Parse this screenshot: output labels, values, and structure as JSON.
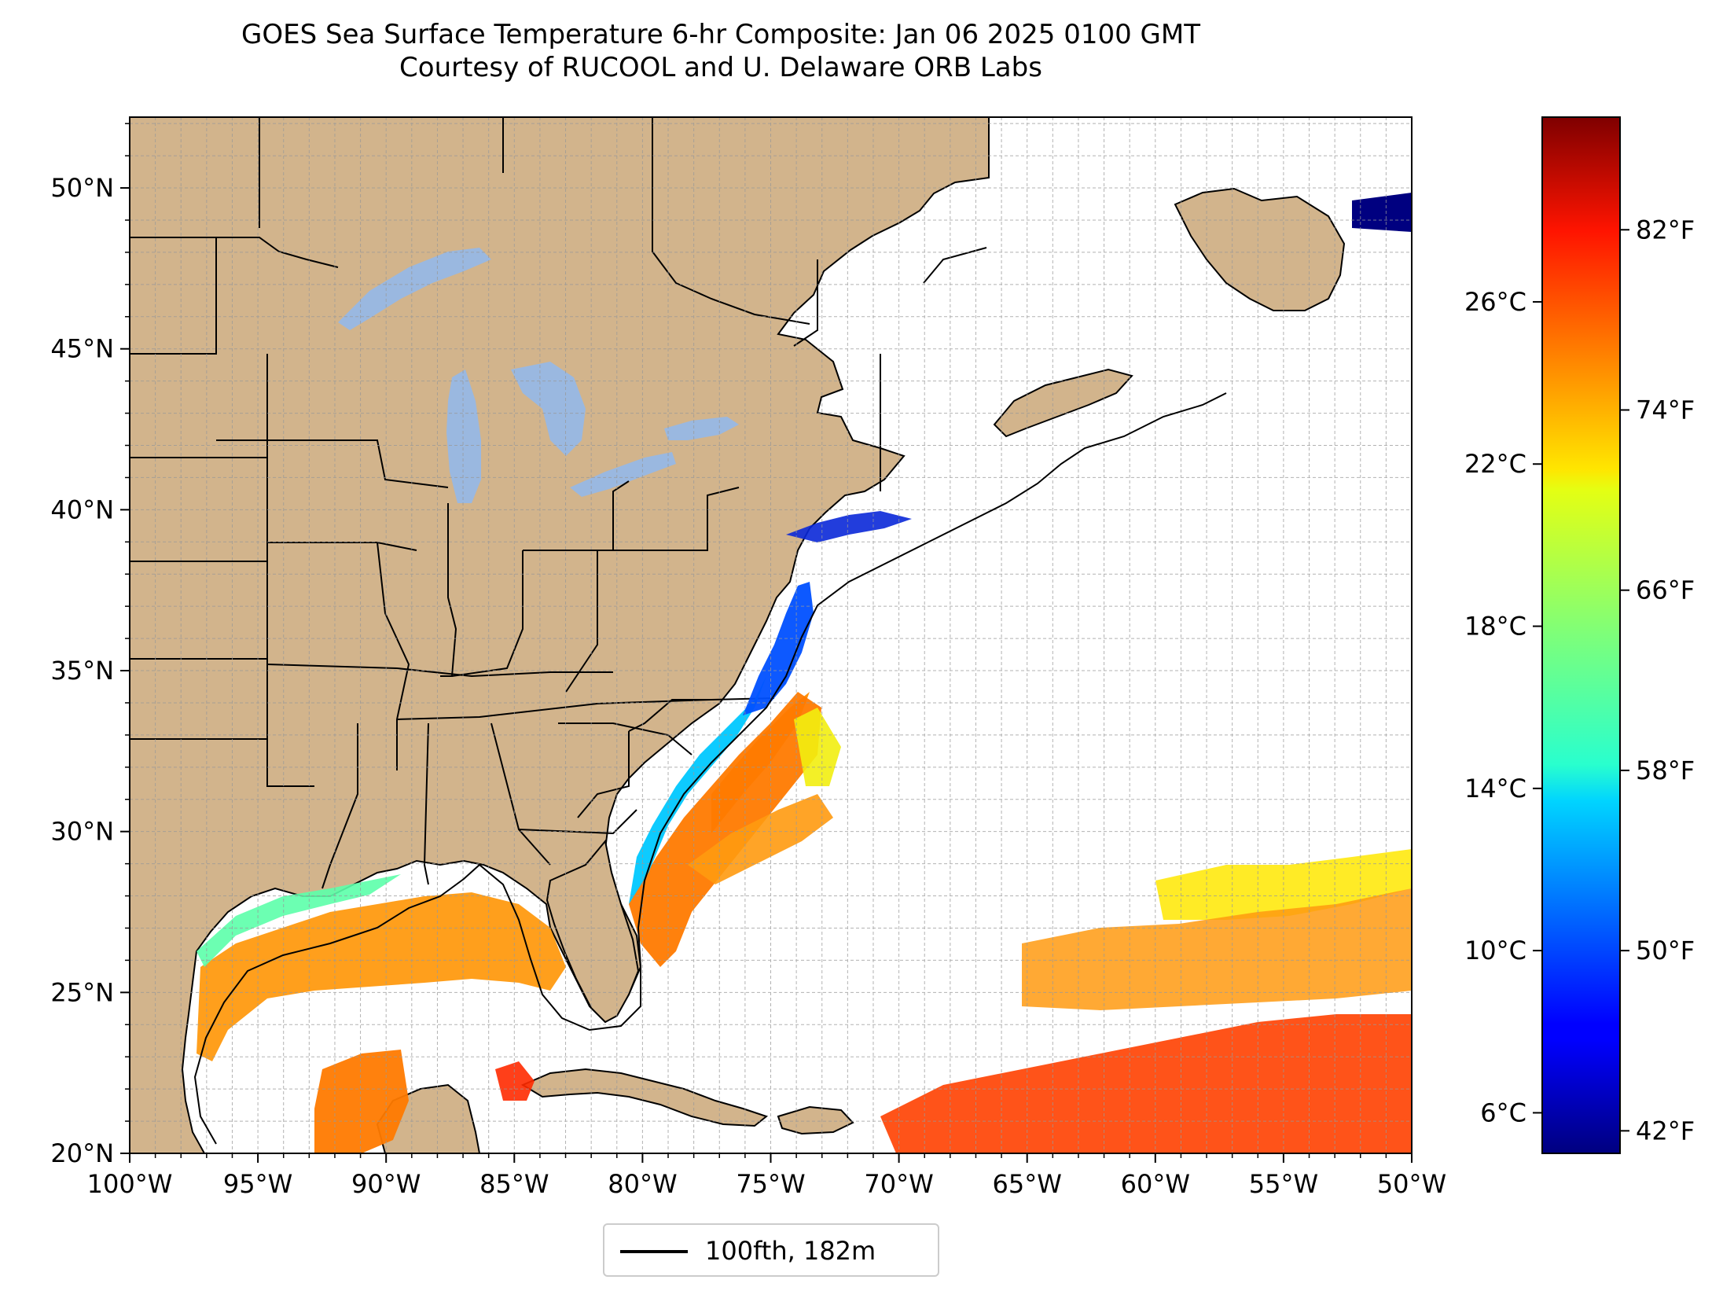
{
  "title": {
    "line1": "GOES Sea Surface Temperature 6-hr Composite: Jan 06 2025 0100 GMT",
    "line2": "Courtesy of RUCOOL and U. Delaware ORB Labs"
  },
  "map": {
    "lon_range": [
      -100,
      -50
    ],
    "lat_range": [
      20,
      52.2
    ],
    "lon_ticks": [
      "100°W",
      "95°W",
      "90°W",
      "85°W",
      "80°W",
      "75°W",
      "70°W",
      "65°W",
      "60°W",
      "55°W",
      "50°W"
    ],
    "lat_ticks": [
      "20°N",
      "25°N",
      "30°N",
      "35°N",
      "40°N",
      "45°N",
      "50°N"
    ],
    "land_color": "#d2b48c",
    "lake_color": "#9ab8e0",
    "ocean_color": "#ffffff",
    "gridlines": true
  },
  "colorbar": {
    "colormap": "jet",
    "celsius_ticks": [
      "6°C",
      "10°C",
      "14°C",
      "18°C",
      "22°C",
      "26°C"
    ],
    "fahrenheit_ticks": [
      "42°F",
      "50°F",
      "58°F",
      "66°F",
      "74°F",
      "82°F"
    ],
    "celsius_values": [
      6,
      10,
      14,
      18,
      22,
      26
    ],
    "fahrenheit_values": [
      42,
      50,
      58,
      66,
      74,
      82
    ],
    "range_f": [
      41,
      87
    ]
  },
  "legend": {
    "label": "100fth, 182m",
    "line_color": "#000000"
  }
}
